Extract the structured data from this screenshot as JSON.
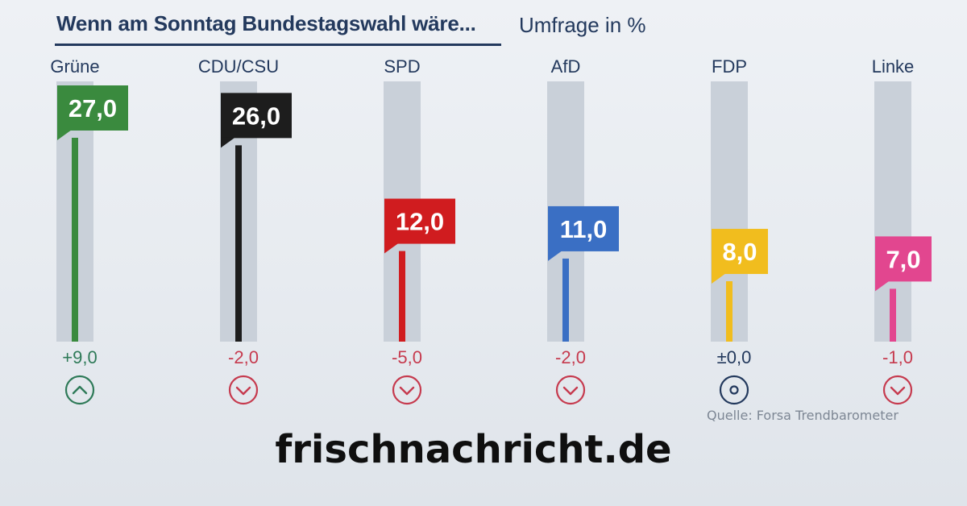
{
  "header": {
    "title": "Wenn am Sonntag Bundestagswahl wäre...",
    "subtitle": "Umfrage in %"
  },
  "chart_data": {
    "type": "bar",
    "title": "Wenn am Sonntag Bundestagswahl wäre...",
    "subtitle": "Umfrage in %",
    "xlabel": "",
    "ylabel": "Umfrage in %",
    "ylim": [
      0,
      27
    ],
    "grid": false,
    "categories": [
      "Grüne",
      "CDU/CSU",
      "SPD",
      "AfD",
      "FDP",
      "Linke"
    ],
    "series": [
      {
        "name": "Umfrage",
        "values": [
          27.0,
          26.0,
          12.0,
          11.0,
          8.0,
          7.0
        ],
        "value_labels": [
          "27,0",
          "26,0",
          "12,0",
          "11,0",
          "8,0",
          "7,0"
        ]
      },
      {
        "name": "Veränderung",
        "values": [
          9.0,
          -2.0,
          -5.0,
          -2.0,
          0.0,
          -1.0
        ],
        "value_labels": [
          "+9,0",
          "-2,0",
          "-5,0",
          "-2,0",
          "±0,0",
          "-1,0"
        ],
        "trend": [
          "up",
          "down",
          "down",
          "down",
          "neutral",
          "down"
        ]
      }
    ],
    "colors": [
      "#3a8a3e",
      "#1d1d1d",
      "#d01c1f",
      "#3a6fc4",
      "#f1bd1e",
      "#e2468f"
    ],
    "change_colors": {
      "up": "#2e7a58",
      "down": "#c63a4e",
      "neutral": "#23395d"
    },
    "track_color": "#c9d0d9"
  },
  "footer": {
    "source": "Quelle: Forsa Trendbarometer",
    "watermark": "frischnachricht.de"
  }
}
